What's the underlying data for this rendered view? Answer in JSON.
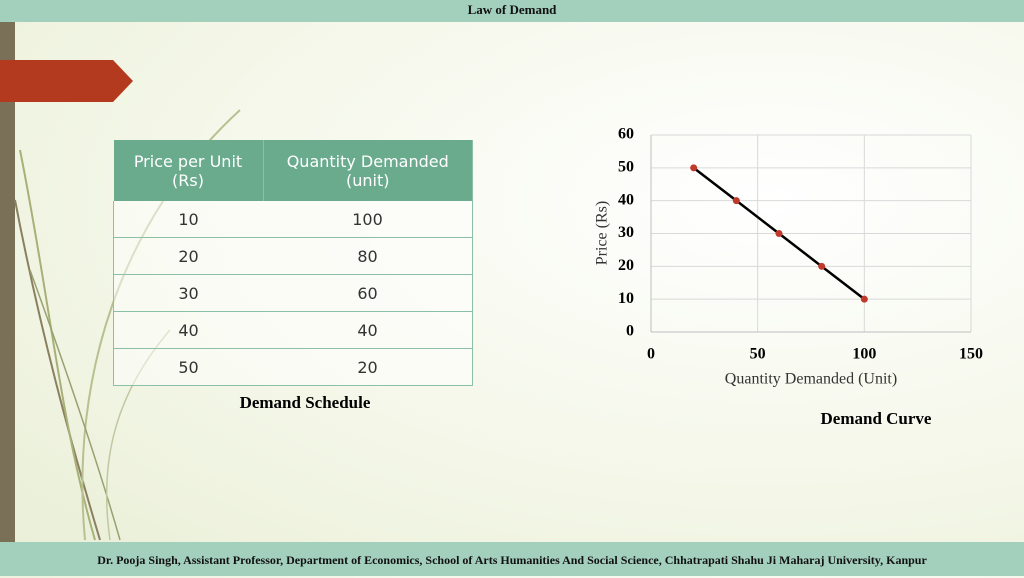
{
  "header": {
    "title": "Law of Demand"
  },
  "table": {
    "columns": [
      "Price per Unit (Rs)",
      "Quantity Demanded (unit)"
    ],
    "rows": [
      [
        10,
        100
      ],
      [
        20,
        80
      ],
      [
        30,
        60
      ],
      [
        40,
        40
      ],
      [
        50,
        20
      ]
    ],
    "caption": "Demand Schedule"
  },
  "chart_data": {
    "type": "line",
    "title": "Demand Curve",
    "x_label": "Quantity Demanded (Unit)",
    "y_label": "Price (Rs)",
    "x": [
      20,
      40,
      60,
      80,
      100
    ],
    "values": [
      50,
      40,
      30,
      20,
      10
    ],
    "color": "#000000",
    "marker_color": "#c0392b",
    "xlim": [
      0,
      150
    ],
    "xticks": [
      0,
      50,
      100,
      150
    ],
    "ylim": [
      0,
      60
    ],
    "yticks": [
      0,
      10,
      20,
      30,
      40,
      50,
      60
    ],
    "grid": true
  },
  "footer": {
    "text": "Dr. Pooja Singh, Assistant Professor, Department of Economics, School of Arts Humanities And Social Science, Chhatrapati Shahu Ji Maharaj University, Kanpur"
  }
}
